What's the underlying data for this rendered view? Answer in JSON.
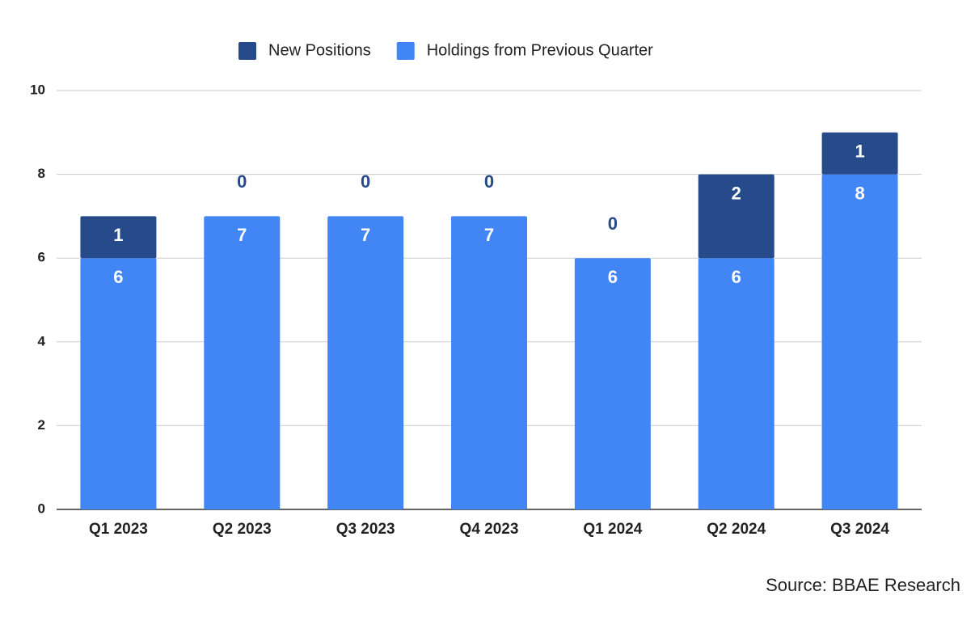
{
  "chart_data": {
    "type": "bar",
    "stacked": true,
    "categories": [
      "Q1 2023",
      "Q2 2023",
      "Q3 2023",
      "Q4 2023",
      "Q1 2024",
      "Q2 2024",
      "Q3 2024"
    ],
    "series": [
      {
        "name": "New Positions",
        "color": "#264a8a",
        "values": [
          1,
          0,
          0,
          0,
          0,
          2,
          1
        ]
      },
      {
        "name": "Holdings from Previous Quarter",
        "color": "#4285f4",
        "values": [
          6,
          7,
          7,
          7,
          6,
          6,
          8
        ]
      }
    ],
    "ylim": [
      0,
      10
    ],
    "yticks": [
      0,
      2,
      4,
      6,
      8,
      10
    ],
    "grid": true,
    "legend": "top",
    "source": "Source: BBAE Research"
  }
}
